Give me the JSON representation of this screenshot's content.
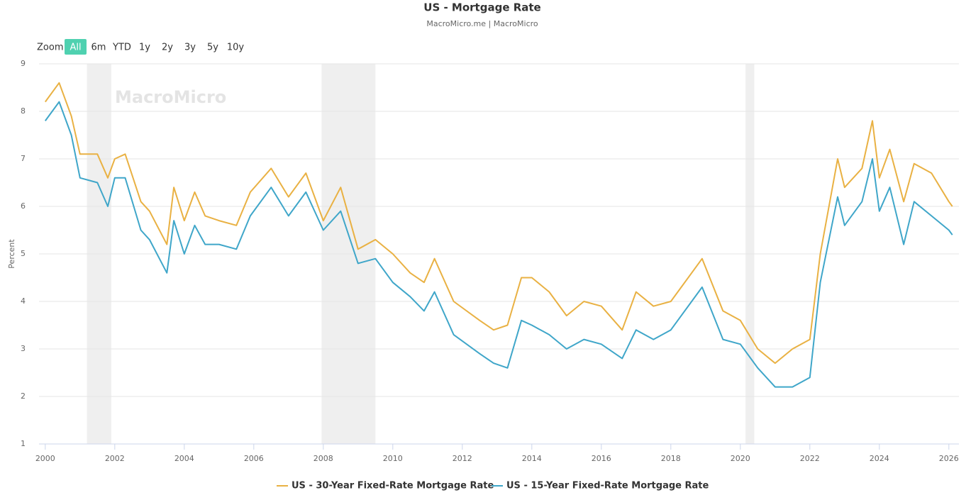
{
  "chart_data": {
    "type": "line",
    "title": "US - Mortgage Rate",
    "subtitle": "MacroMicro.me | MacroMicro",
    "watermark": "MacroMicro",
    "y_label": "Percent",
    "range_selector": {
      "label": "Zoom",
      "buttons": [
        "All",
        "6m",
        "YTD",
        "1y",
        "2y",
        "3y",
        "5y",
        "10y"
      ],
      "selected": 0
    },
    "x": [
      2000.0,
      2000.4,
      2000.75,
      2001.0,
      2001.5,
      2001.8,
      2002.0,
      2002.3,
      2002.75,
      2003.0,
      2003.5,
      2003.7,
      2004.0,
      2004.3,
      2004.6,
      2005.0,
      2005.5,
      2005.9,
      2006.5,
      2007.0,
      2007.5,
      2008.0,
      2008.5,
      2009.0,
      2009.5,
      2010.0,
      2010.5,
      2010.9,
      2011.2,
      2011.75,
      2012.5,
      2012.9,
      2013.3,
      2013.7,
      2014.0,
      2014.5,
      2015.0,
      2015.5,
      2016.0,
      2016.6,
      2017.0,
      2017.5,
      2018.0,
      2018.9,
      2019.5,
      2020.0,
      2020.5,
      2021.0,
      2021.5,
      2022.0,
      2022.3,
      2022.8,
      2023.0,
      2023.5,
      2023.8,
      2024.0,
      2024.3,
      2024.7,
      2025.0,
      2025.5,
      2026.0,
      2026.1
    ],
    "series": [
      {
        "name": "US - 30-Year Fixed-Rate Mortgage Rate",
        "color": "#e9b143",
        "values": [
          8.2,
          8.6,
          7.9,
          7.1,
          7.1,
          6.6,
          7.0,
          7.1,
          6.1,
          5.9,
          5.2,
          6.4,
          5.7,
          6.3,
          5.8,
          5.7,
          5.6,
          6.3,
          6.8,
          6.2,
          6.7,
          5.7,
          6.4,
          5.1,
          5.3,
          5.0,
          4.6,
          4.4,
          4.9,
          4.0,
          3.6,
          3.4,
          3.5,
          4.5,
          4.5,
          4.2,
          3.7,
          4.0,
          3.9,
          3.4,
          4.2,
          3.9,
          4.0,
          4.9,
          3.8,
          3.6,
          3.0,
          2.7,
          3.0,
          3.2,
          5.0,
          7.0,
          6.4,
          6.8,
          7.8,
          6.6,
          7.2,
          6.1,
          6.9,
          6.7,
          6.1,
          6.0
        ]
      },
      {
        "name": "US - 15-Year Fixed-Rate Mortgage Rate",
        "color": "#3fa6c9",
        "values": [
          7.8,
          8.2,
          7.5,
          6.6,
          6.5,
          6.0,
          6.6,
          6.6,
          5.5,
          5.3,
          4.6,
          5.7,
          5.0,
          5.6,
          5.2,
          5.2,
          5.1,
          5.8,
          6.4,
          5.8,
          6.3,
          5.5,
          5.9,
          4.8,
          4.9,
          4.4,
          4.1,
          3.8,
          4.2,
          3.3,
          2.9,
          2.7,
          2.6,
          3.6,
          3.5,
          3.3,
          3.0,
          3.2,
          3.1,
          2.8,
          3.4,
          3.2,
          3.4,
          4.3,
          3.2,
          3.1,
          2.6,
          2.2,
          2.2,
          2.4,
          4.4,
          6.2,
          5.6,
          6.1,
          7.0,
          5.9,
          6.4,
          5.2,
          6.1,
          5.8,
          5.5,
          5.4
        ]
      }
    ],
    "shaded_ranges": [
      [
        2001.2,
        2001.9
      ],
      [
        2007.95,
        2009.5
      ],
      [
        2020.15,
        2020.4
      ]
    ],
    "xlim": [
      1999.82,
      2026.29
    ],
    "xticks": [
      2000,
      2002,
      2004,
      2006,
      2008,
      2010,
      2012,
      2014,
      2016,
      2018,
      2020,
      2022,
      2024,
      2026
    ],
    "ylim": [
      1,
      9
    ],
    "yticks": [
      1,
      2,
      3,
      4,
      5,
      6,
      7,
      8,
      9
    ],
    "grid": true,
    "legend": "bottom"
  }
}
